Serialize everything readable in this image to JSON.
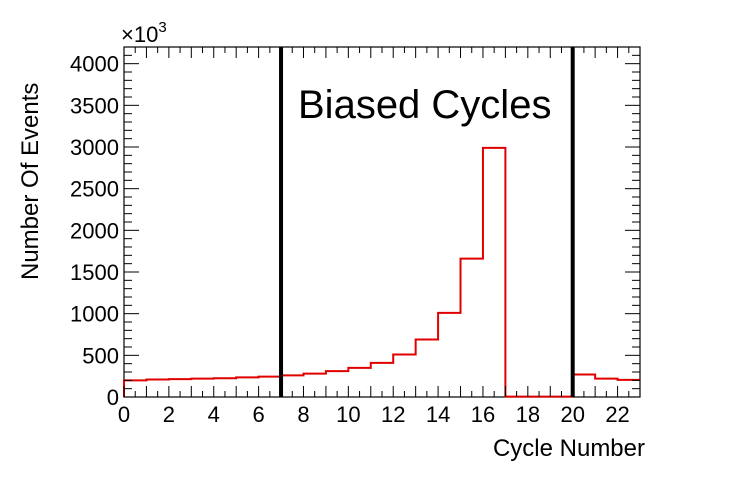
{
  "chart_data": {
    "type": "histogram",
    "xlabel": "Cycle Number",
    "ylabel": "Number Of Events",
    "y_multiplier": "×10",
    "y_multiplier_exp": "3",
    "annotation": "Biased Cycles",
    "xlim": [
      0,
      23
    ],
    "ylim": [
      0,
      4200
    ],
    "xticks": [
      0,
      2,
      4,
      6,
      8,
      10,
      12,
      14,
      16,
      18,
      20,
      22
    ],
    "yticks": [
      0,
      500,
      1000,
      1500,
      2000,
      2500,
      3000,
      3500,
      4000
    ],
    "bin_edges": [
      0,
      1,
      2,
      3,
      4,
      5,
      6,
      7,
      8,
      9,
      10,
      11,
      12,
      13,
      14,
      15,
      16,
      17,
      18,
      19,
      20,
      21,
      22,
      23
    ],
    "values": [
      200,
      210,
      215,
      220,
      225,
      235,
      245,
      260,
      280,
      310,
      350,
      410,
      510,
      690,
      1010,
      1660,
      2990,
      5,
      5,
      5,
      270,
      220,
      205
    ],
    "line_color": "#e00000",
    "vertical_lines_x": [
      7,
      20
    ],
    "vertical_line_color": "#000000"
  }
}
